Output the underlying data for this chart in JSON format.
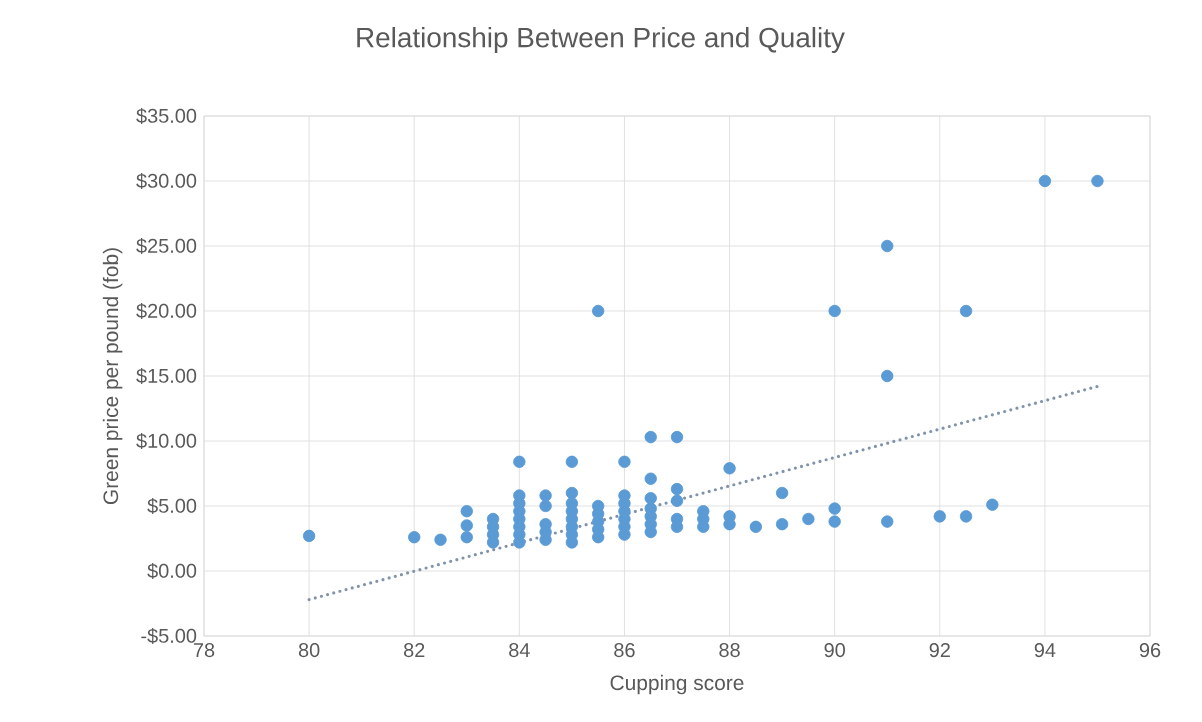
{
  "chart_data": {
    "type": "scatter",
    "title": "Relationship Between Price and Quality",
    "xlabel": "Cupping score",
    "ylabel": "Green price per pound (fob)",
    "xlim": [
      78,
      96
    ],
    "xticks": [
      78,
      80,
      82,
      84,
      86,
      88,
      90,
      92,
      94,
      96
    ],
    "ylim": [
      -5,
      35
    ],
    "yticks": [
      {
        "value": -5,
        "label": "-$5.00"
      },
      {
        "value": 0,
        "label": "$0.00"
      },
      {
        "value": 5,
        "label": "$5.00"
      },
      {
        "value": 10,
        "label": "$10.00"
      },
      {
        "value": 15,
        "label": "$15.00"
      },
      {
        "value": 20,
        "label": "$20.00"
      },
      {
        "value": 25,
        "label": "$25.00"
      },
      {
        "value": 30,
        "label": "$30.00"
      },
      {
        "value": 35,
        "label": "$35.00"
      }
    ],
    "grid": true,
    "series": [
      {
        "color": "#5b9bd5",
        "marker": "circle",
        "x": [
          80,
          82,
          82.5,
          83,
          83,
          83,
          83.5,
          83.5,
          83.5,
          83.5,
          84,
          84,
          84,
          84,
          84,
          84,
          84,
          84,
          84.5,
          84.5,
          84.5,
          84.5,
          84.5,
          85,
          85,
          85,
          85,
          85,
          85,
          85,
          85,
          85.5,
          85.5,
          85.5,
          85.5,
          85.5,
          85.5,
          86,
          86,
          86,
          86,
          86,
          86,
          86,
          86.5,
          86.5,
          86.5,
          86.5,
          86.5,
          86.5,
          86.5,
          87,
          87,
          87,
          87,
          87,
          87.5,
          87.5,
          87.5,
          88,
          88,
          88,
          88.5,
          89,
          89,
          89.5,
          90,
          90,
          90,
          91,
          91,
          91,
          92,
          92.5,
          92.5,
          93,
          94,
          95
        ],
        "values": [
          2.7,
          2.6,
          2.4,
          4.6,
          3.5,
          2.6,
          4.0,
          3.4,
          2.8,
          2.2,
          8.4,
          5.8,
          5.2,
          4.6,
          4.0,
          3.4,
          2.8,
          2.2,
          5.8,
          5.0,
          3.6,
          3.0,
          2.4,
          8.4,
          6.0,
          5.2,
          4.6,
          4.0,
          3.4,
          2.8,
          2.2,
          20,
          5.0,
          4.4,
          3.8,
          3.2,
          2.6,
          8.4,
          5.8,
          5.2,
          4.6,
          4.0,
          3.4,
          2.8,
          10.3,
          7.1,
          5.6,
          4.8,
          4.2,
          3.6,
          3.0,
          10.3,
          6.3,
          5.4,
          4.0,
          3.4,
          4.6,
          4.0,
          3.4,
          7.9,
          4.2,
          3.6,
          3.4,
          6.0,
          3.6,
          4.0,
          20,
          4.8,
          3.8,
          25,
          15,
          3.8,
          4.2,
          20,
          4.2,
          5.1,
          30,
          30
        ]
      },
      {
        "type": "line",
        "color": "#7f93ab",
        "marker": "none",
        "line_style": "dotted",
        "x": [
          80,
          95
        ],
        "values": [
          -2.2,
          14.2
        ]
      }
    ]
  }
}
